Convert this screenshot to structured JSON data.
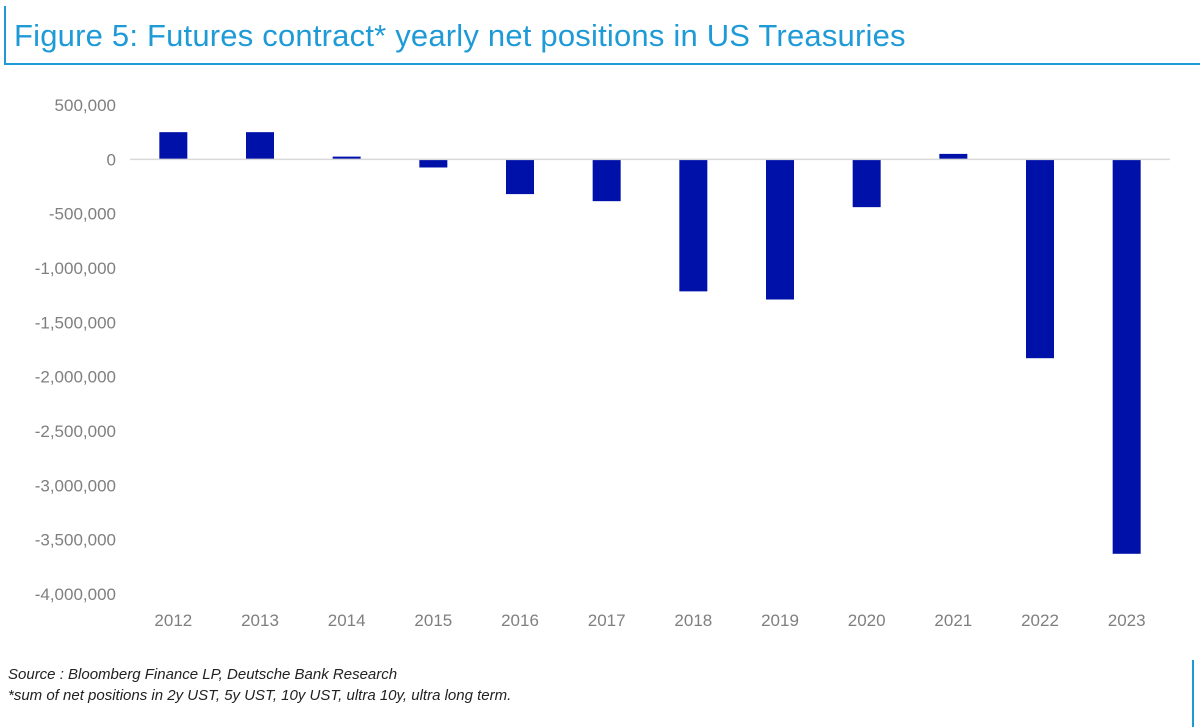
{
  "figure": {
    "title": "Figure 5: Futures contract* yearly net positions in US Treasuries",
    "source": "Source : Bloomberg Finance LP, Deutsche Bank Research",
    "footnote": "*sum of net positions in 2y UST, 5y UST, 10y UST, ultra 10y, ultra long term."
  },
  "colors": {
    "accent": "#1e9bd7",
    "bar": "#0011aa",
    "axis_text": "#7f7f7f",
    "zero_line": "#d9d9d9"
  },
  "chart_data": {
    "type": "bar",
    "title": "Figure 5: Futures contract* yearly net positions in US Treasuries",
    "xlabel": "",
    "ylabel": "",
    "categories": [
      "2012",
      "2013",
      "2014",
      "2015",
      "2016",
      "2017",
      "2018",
      "2019",
      "2020",
      "2021",
      "2022",
      "2023"
    ],
    "values": [
      250000,
      250000,
      25000,
      -75000,
      -320000,
      -385000,
      -1215000,
      -1290000,
      -440000,
      50000,
      -1830000,
      -3630000
    ],
    "ylim": [
      -4000000,
      500000
    ],
    "yticks": [
      500000,
      0,
      -500000,
      -1000000,
      -1500000,
      -2000000,
      -2500000,
      -3000000,
      -3500000,
      -4000000
    ],
    "ytick_labels": [
      "500,000",
      "0",
      "-500,000",
      "-1,000,000",
      "-1,500,000",
      "-2,000,000",
      "-2,500,000",
      "-3,000,000",
      "-3,500,000",
      "-4,000,000"
    ],
    "grid": false,
    "legend": "none"
  }
}
